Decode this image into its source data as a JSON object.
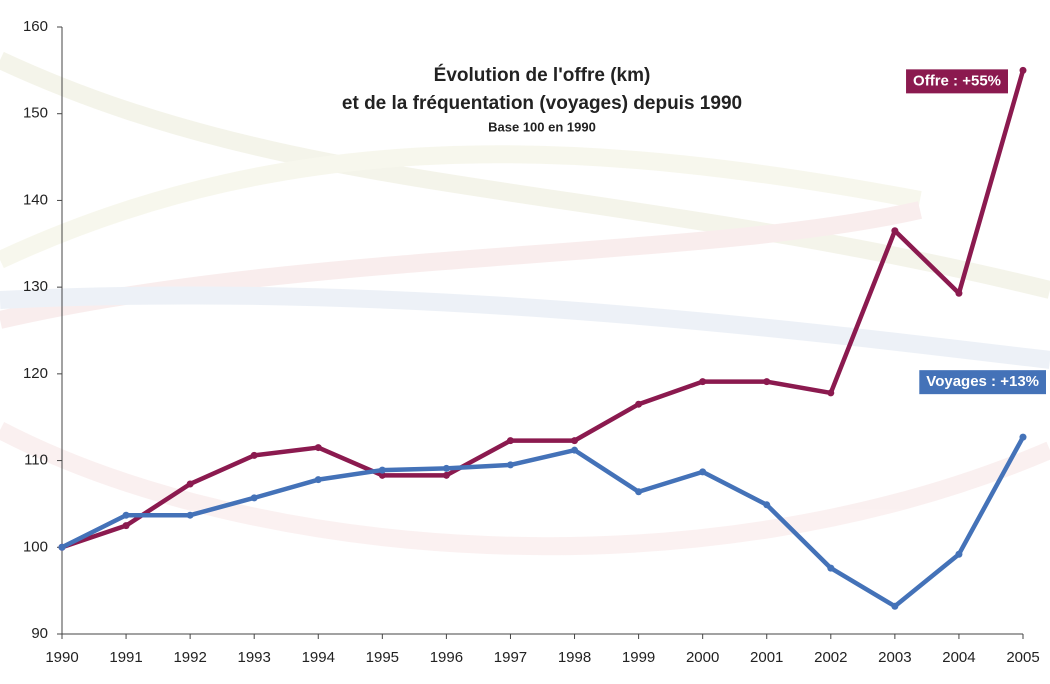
{
  "chart_data": {
    "type": "line",
    "title": "Évolution de l'offre (km)",
    "title_line2": "et de la fréquentation (voyages) depuis 1990",
    "subtitle": "Base 100 en 1990",
    "categories": [
      "1990",
      "1991",
      "1992",
      "1993",
      "1994",
      "1995",
      "1996",
      "1997",
      "1998",
      "1999",
      "2000",
      "2001",
      "2002",
      "2003",
      "2004",
      "2005"
    ],
    "series": [
      {
        "name": "Offre : +55%",
        "color": "#8b1a4f",
        "values": [
          100,
          102.5,
          107.3,
          110.6,
          111.5,
          108.3,
          108.3,
          112.3,
          112.3,
          116.5,
          119.1,
          119.1,
          117.8,
          136.5,
          129.3,
          155
        ]
      },
      {
        "name": "Voyages : +13%",
        "color": "#4472b8",
        "values": [
          100,
          103.7,
          103.7,
          105.7,
          107.8,
          108.9,
          109.1,
          109.5,
          111.2,
          106.4,
          108.7,
          104.9,
          97.6,
          93.2,
          99.2,
          112.7
        ]
      }
    ],
    "ylim": [
      90,
      160
    ],
    "yticks": [
      90,
      100,
      110,
      120,
      130,
      140,
      150,
      160
    ]
  }
}
